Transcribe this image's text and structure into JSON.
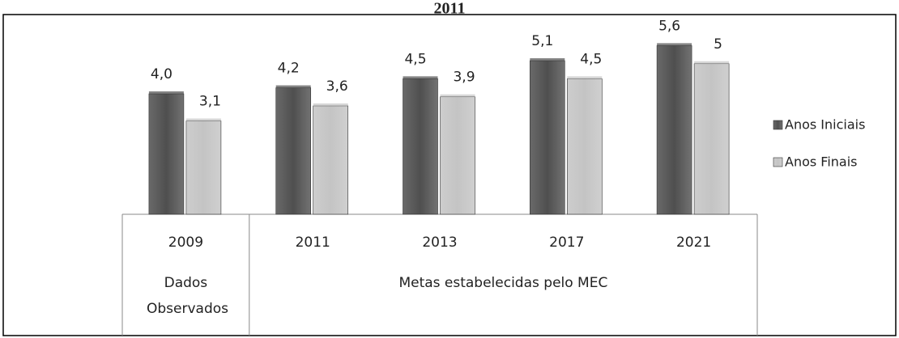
{
  "chart_data": {
    "type": "bar",
    "title": "2011",
    "categories": [
      "2009",
      "2011",
      "2013",
      "2017",
      "2021"
    ],
    "groups": [
      "Dados Observados",
      "Metas estabelecidas pelo MEC"
    ],
    "series": [
      {
        "name": "Anos Iniciais",
        "color": "#4f4f4f",
        "values": [
          4.0,
          4.2,
          4.5,
          5.1,
          5.6
        ],
        "value_labels": [
          "4,0",
          "4,2",
          "4,5",
          "5,1",
          "5,6"
        ]
      },
      {
        "name": "Anos Finais",
        "color": "#c4c4c4",
        "values": [
          3.1,
          3.6,
          3.9,
          4.5,
          5
        ],
        "value_labels": [
          "3,1",
          "3,6",
          "3,9",
          "4,5",
          "5"
        ]
      }
    ],
    "ylim": [
      0,
      6
    ],
    "legend": "right",
    "grid": false
  }
}
